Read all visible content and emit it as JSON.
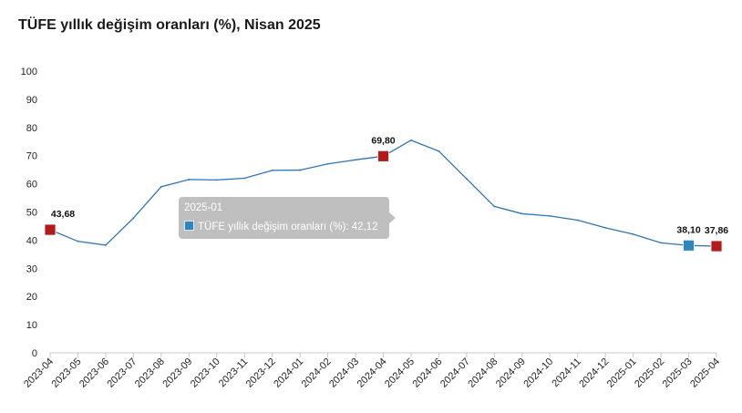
{
  "title": "TÜFE yıllık değişim oranları (%), Nisan 2025",
  "colors": {
    "line": "#2e75b6",
    "highlight_marker": "#b31b1b",
    "active_marker": "#2e86c1",
    "axis": "#c8c8c8"
  },
  "tooltip": {
    "category": "2025-01",
    "text": "TÜFE yıllık değişim oranları (%): 42,12"
  },
  "chart_data": {
    "type": "line",
    "title": "TÜFE yıllık değişim oranları (%), Nisan 2025",
    "xlabel": "",
    "ylabel": "",
    "ylim": [
      0,
      100
    ],
    "yticks": [
      0,
      10,
      20,
      30,
      40,
      50,
      60,
      70,
      80,
      90,
      100
    ],
    "grid": false,
    "categories": [
      "2023-04",
      "2023-05",
      "2023-06",
      "2023-07",
      "2023-08",
      "2023-09",
      "2023-10",
      "2023-11",
      "2023-12",
      "2024-01",
      "2024-02",
      "2024-03",
      "2024-04",
      "2024-05",
      "2024-06",
      "2024-07",
      "2024-08",
      "2024-09",
      "2024-10",
      "2024-11",
      "2024-12",
      "2025-01",
      "2025-02",
      "2025-03",
      "2025-04"
    ],
    "series": [
      {
        "values": [
          43.68,
          39.59,
          38.21,
          47.83,
          58.94,
          61.53,
          61.36,
          61.98,
          64.77,
          64.86,
          67.07,
          68.5,
          69.8,
          75.45,
          71.6,
          61.78,
          51.97,
          49.38,
          48.58,
          47.09,
          44.38,
          42.12,
          39.05,
          38.1,
          37.86
        ]
      }
    ],
    "markers": [
      {
        "category": "2023-04",
        "label": "43,68",
        "style": "highlight"
      },
      {
        "category": "2024-04",
        "label": "69,80",
        "style": "highlight"
      },
      {
        "category": "2025-03",
        "label": "38,10",
        "style": "active"
      },
      {
        "category": "2025-04",
        "label": "37,86",
        "style": "highlight"
      }
    ]
  }
}
